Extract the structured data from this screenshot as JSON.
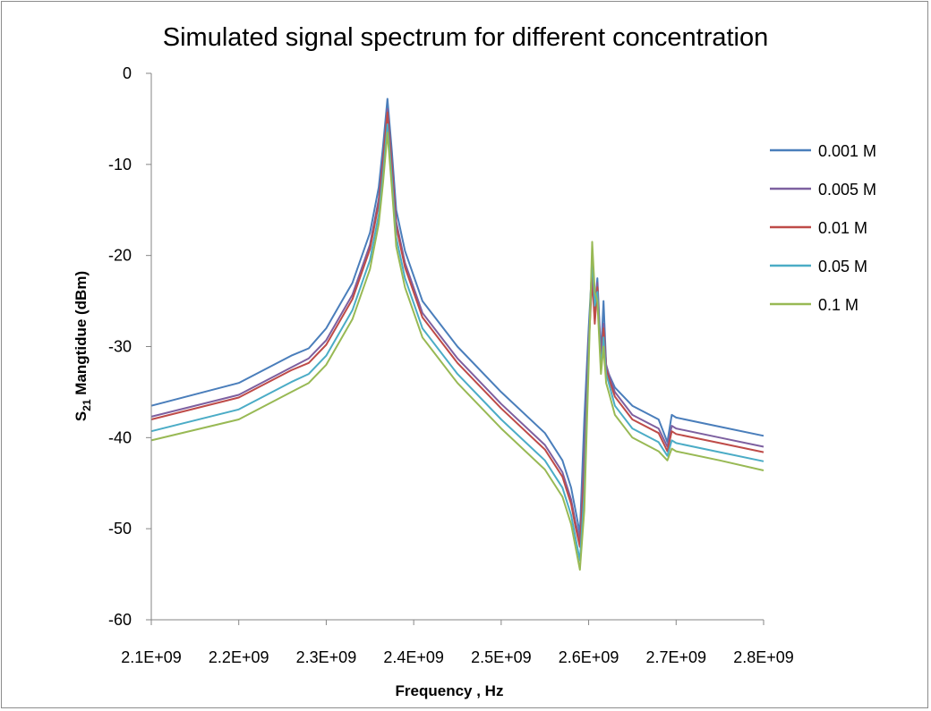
{
  "chart_data": {
    "type": "line",
    "title": "Simulated signal spectrum for different concentration",
    "xlabel": "Frequency , Hz",
    "ylabel": {
      "prefix": "S",
      "subscript": "21",
      "suffix": " Mangtidue (dBm)"
    },
    "xlim": [
      2100000000,
      2800000000
    ],
    "ylim": [
      -60,
      0
    ],
    "x_ticks": [
      2100000000,
      2200000000,
      2300000000,
      2400000000,
      2500000000,
      2600000000,
      2700000000,
      2800000000
    ],
    "x_tick_labels": [
      "2.1E+09",
      "2.2E+09",
      "2.3E+09",
      "2.4E+09",
      "2.5E+09",
      "2.6E+09",
      "2.7E+09",
      "2.8E+09"
    ],
    "y_ticks": [
      0,
      -10,
      -20,
      -30,
      -40,
      -50,
      -60
    ],
    "y_tick_labels": [
      "0",
      "-10",
      "-20",
      "-30",
      "-40",
      "-50",
      "-60"
    ],
    "grid": false,
    "legend_position": "right",
    "x": [
      2100000000,
      2200000000,
      2260000000,
      2280000000,
      2300000000,
      2330000000,
      2350000000,
      2360000000,
      2365000000,
      2370000000,
      2375000000,
      2380000000,
      2390000000,
      2410000000,
      2450000000,
      2500000000,
      2550000000,
      2570000000,
      2580000000,
      2585000000,
      2590000000,
      2595000000,
      2600000000,
      2604000000,
      2607000000,
      2610000000,
      2614000000,
      2617000000,
      2620000000,
      2623000000,
      2630000000,
      2650000000,
      2680000000,
      2690000000,
      2695000000,
      2700000000,
      2750000000,
      2800000000
    ],
    "series": [
      {
        "name": "0.001 M",
        "color": "#4a7ebb",
        "values": [
          -36.5,
          -34.0,
          -31.0,
          -30.2,
          -28.0,
          -23.0,
          -17.5,
          -12.5,
          -8.0,
          -2.8,
          -8.5,
          -15.0,
          -19.5,
          -25.0,
          -30.0,
          -35.0,
          -39.5,
          -42.5,
          -45.5,
          -48.0,
          -50.5,
          -38.0,
          -28.0,
          -21.0,
          -26.0,
          -22.5,
          -31.0,
          -25.0,
          -32.0,
          -33.0,
          -34.5,
          -36.5,
          -38.0,
          -40.5,
          -37.5,
          -37.8,
          -38.8,
          -39.8
        ]
      },
      {
        "name": "0.005 M",
        "color": "#7d60a0",
        "values": [
          -37.7,
          -35.3,
          -32.3,
          -31.3,
          -29.3,
          -24.3,
          -18.8,
          -13.8,
          -9.3,
          -3.9,
          -9.8,
          -16.3,
          -20.8,
          -26.3,
          -31.3,
          -36.3,
          -40.8,
          -43.8,
          -46.8,
          -49.3,
          -51.3,
          -42.0,
          -29.0,
          -22.0,
          -27.0,
          -23.0,
          -31.5,
          -27.5,
          -32.0,
          -33.0,
          -35.0,
          -37.5,
          -39.0,
          -41.0,
          -38.7,
          -39.0,
          -40.0,
          -41.0
        ]
      },
      {
        "name": "0.01 M",
        "color": "#be4b48",
        "values": [
          -38.0,
          -35.6,
          -32.6,
          -31.8,
          -29.8,
          -24.8,
          -19.3,
          -14.3,
          -9.8,
          -4.3,
          -10.3,
          -16.8,
          -21.3,
          -26.8,
          -31.8,
          -36.8,
          -41.3,
          -44.3,
          -47.3,
          -49.8,
          -52.0,
          -44.0,
          -30.0,
          -22.5,
          -27.5,
          -23.5,
          -32.0,
          -28.0,
          -32.5,
          -33.5,
          -35.5,
          -38.0,
          -39.5,
          -41.5,
          -39.3,
          -39.6,
          -40.6,
          -41.6
        ]
      },
      {
        "name": "0.05 M",
        "color": "#4bacc6",
        "values": [
          -39.3,
          -36.9,
          -33.9,
          -33.0,
          -31.0,
          -26.0,
          -20.5,
          -15.5,
          -11.0,
          -5.6,
          -11.5,
          -18.0,
          -22.5,
          -28.0,
          -33.0,
          -38.0,
          -42.5,
          -45.5,
          -48.5,
          -51.0,
          -53.5,
          -46.0,
          -30.5,
          -20.0,
          -25.5,
          -24.0,
          -32.5,
          -29.0,
          -33.0,
          -34.0,
          -36.5,
          -39.0,
          -40.5,
          -42.0,
          -40.3,
          -40.6,
          -41.6,
          -42.6
        ]
      },
      {
        "name": "0.1 M",
        "color": "#98b954",
        "values": [
          -40.3,
          -38.0,
          -35.0,
          -34.0,
          -32.0,
          -27.0,
          -21.5,
          -16.5,
          -12.0,
          -6.5,
          -12.5,
          -19.0,
          -23.5,
          -29.0,
          -34.0,
          -39.0,
          -43.5,
          -46.5,
          -49.5,
          -52.0,
          -54.5,
          -48.0,
          -32.0,
          -18.5,
          -24.0,
          -25.0,
          -33.0,
          -30.0,
          -34.0,
          -35.0,
          -37.5,
          -40.0,
          -41.5,
          -42.5,
          -41.2,
          -41.5,
          -42.5,
          -43.6
        ]
      }
    ]
  }
}
